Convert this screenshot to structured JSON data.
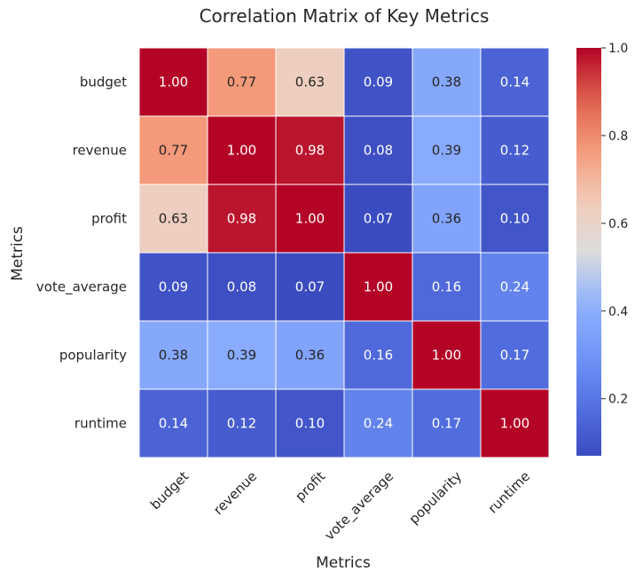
{
  "chart_data": {
    "type": "heatmap",
    "title": "Correlation Matrix of Key Metrics",
    "xlabel": "Metrics",
    "ylabel": "Metrics",
    "x_categories": [
      "budget",
      "revenue",
      "profit",
      "vote_average",
      "popularity",
      "runtime"
    ],
    "y_categories": [
      "budget",
      "revenue",
      "profit",
      "vote_average",
      "popularity",
      "runtime"
    ],
    "values": [
      [
        1.0,
        0.77,
        0.63,
        0.09,
        0.38,
        0.14
      ],
      [
        0.77,
        1.0,
        0.98,
        0.08,
        0.39,
        0.12
      ],
      [
        0.63,
        0.98,
        1.0,
        0.07,
        0.36,
        0.1
      ],
      [
        0.09,
        0.08,
        0.07,
        1.0,
        0.16,
        0.24
      ],
      [
        0.38,
        0.39,
        0.36,
        0.16,
        1.0,
        0.17
      ],
      [
        0.14,
        0.12,
        0.1,
        0.24,
        0.17,
        1.0
      ]
    ],
    "colorscale": "coolwarm",
    "colorbar": {
      "range": [
        0.07,
        1.0
      ],
      "ticks": [
        0.2,
        0.4,
        0.6,
        0.8,
        1.0
      ],
      "tick_labels": [
        "0.2",
        "0.4",
        "0.6",
        "0.8",
        "1.0"
      ]
    },
    "annotation_format": "0.00",
    "grid": false
  }
}
